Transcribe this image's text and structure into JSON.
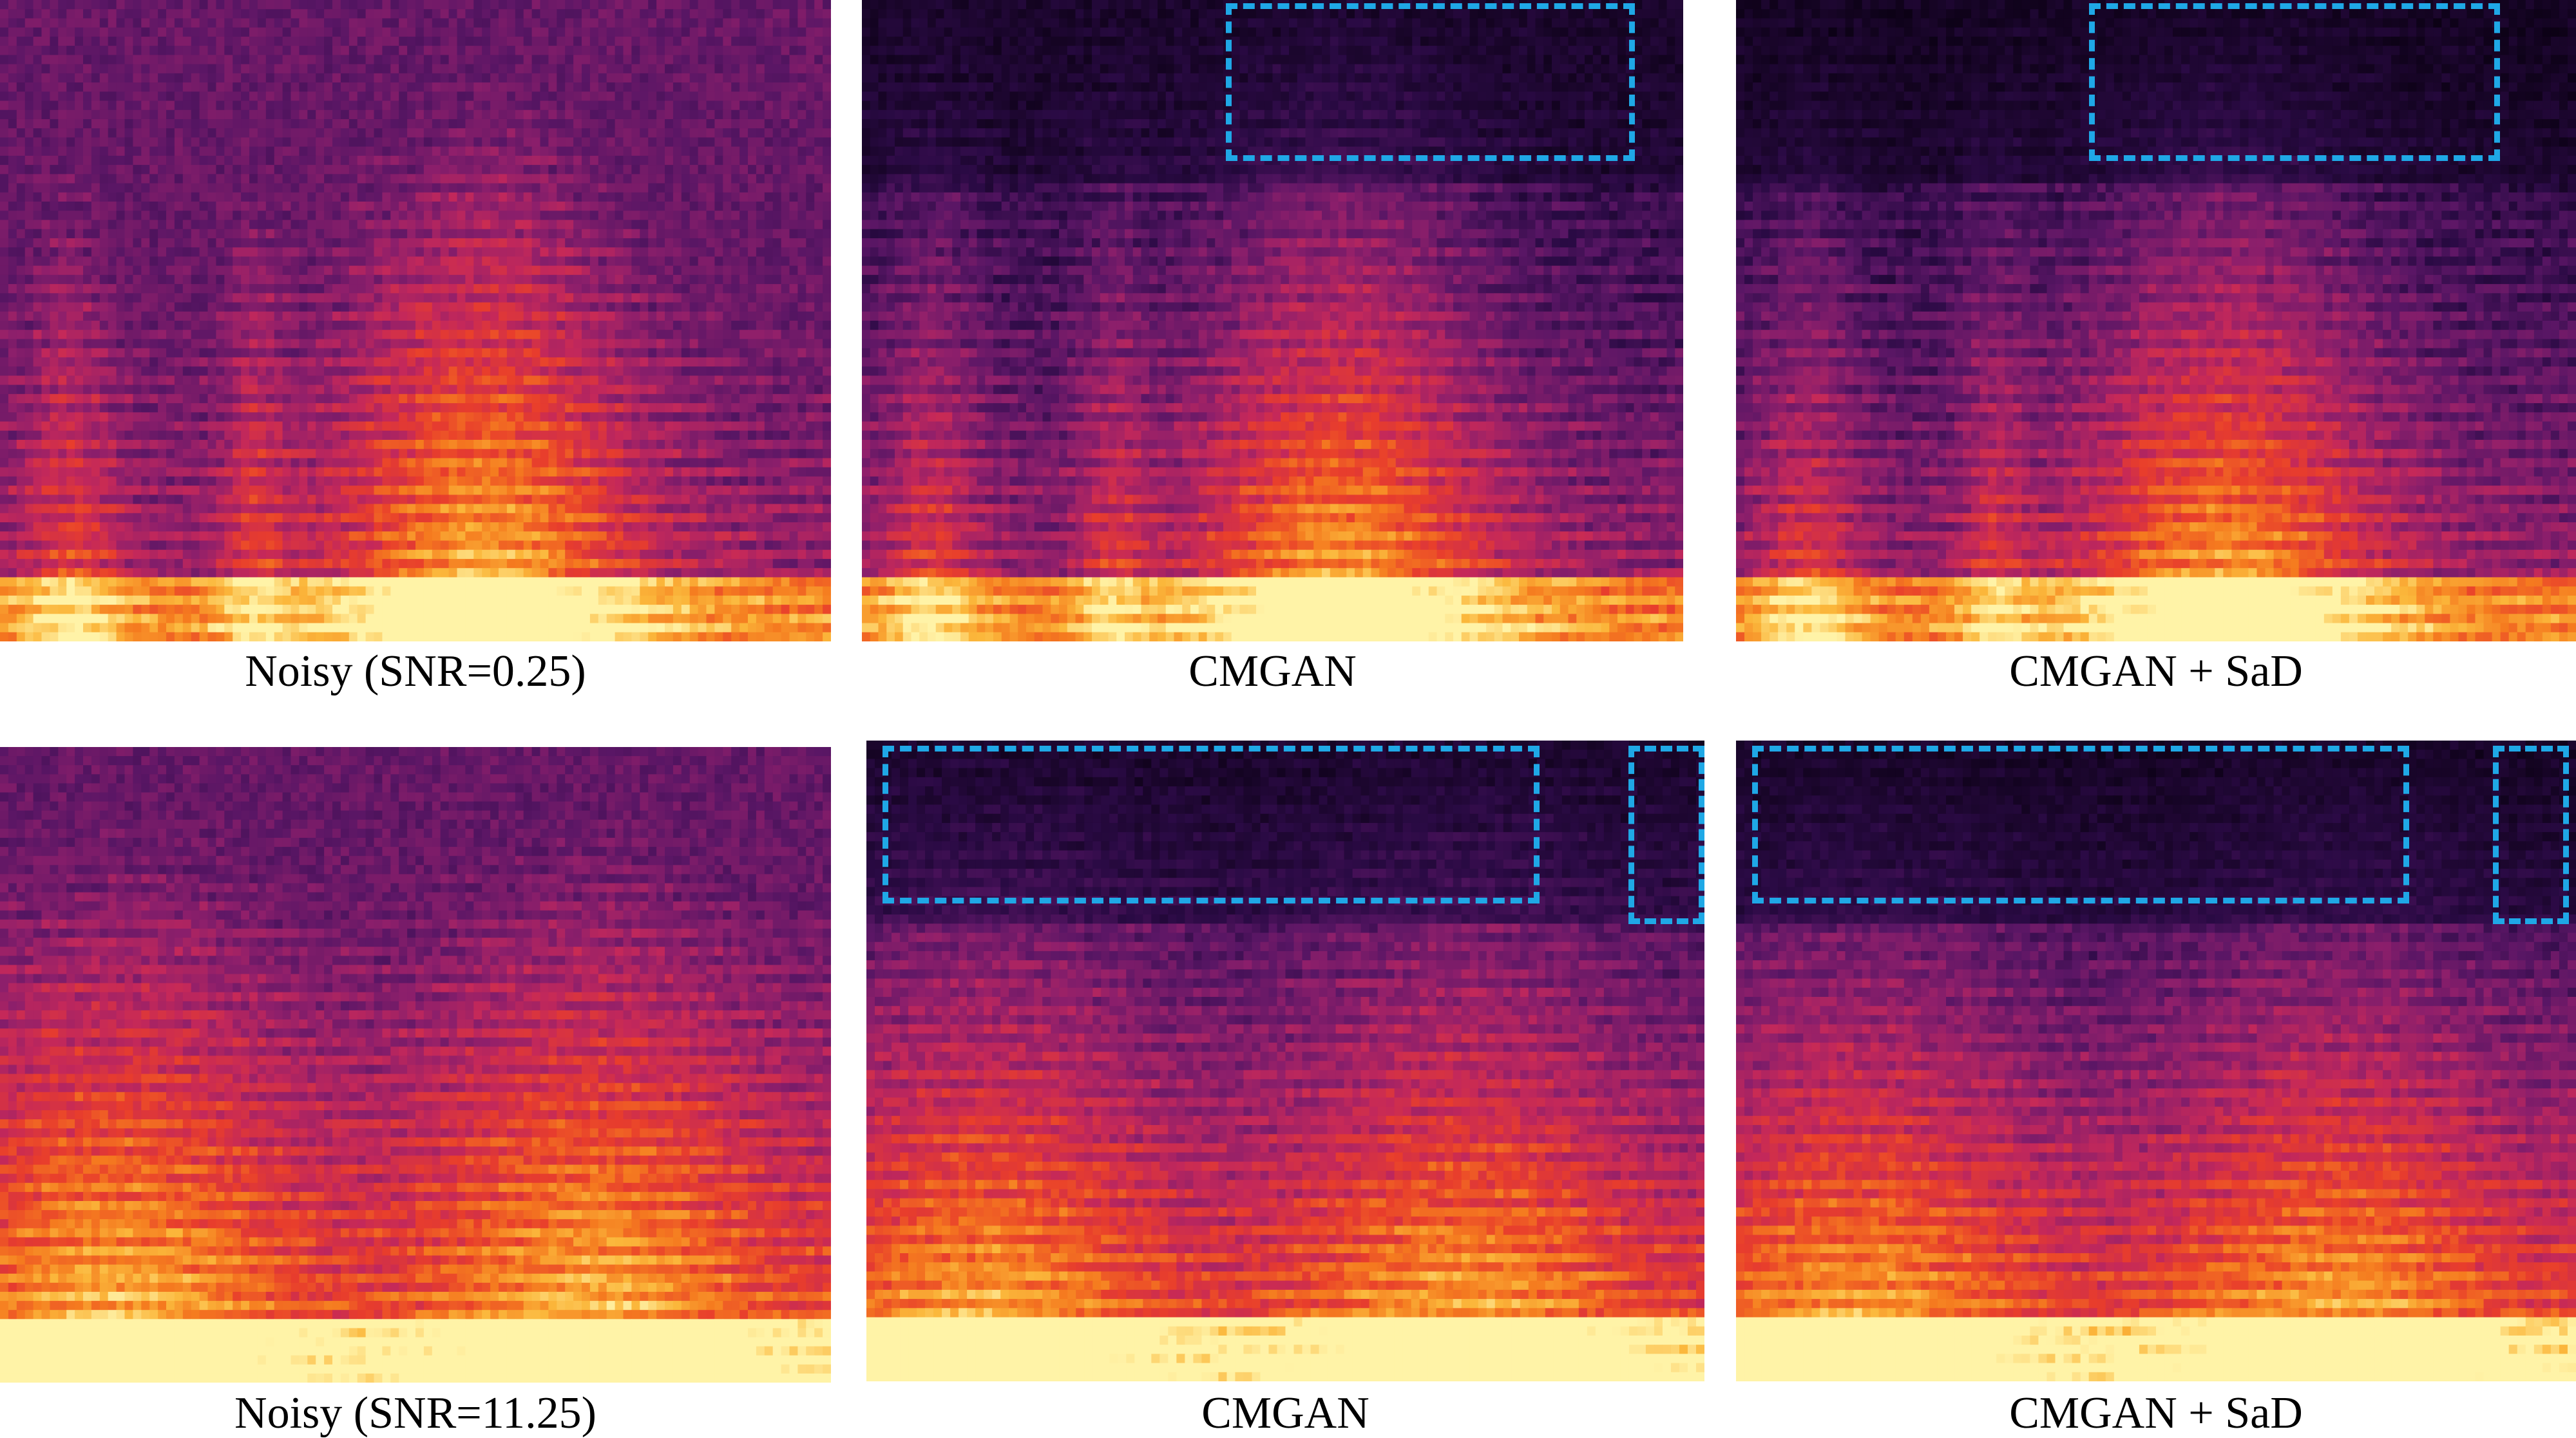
{
  "figure": {
    "rows": [
      {
        "panels": [
          {
            "caption": "Noisy (SNR=0.25)",
            "kind": "noisy",
            "suppression": 0.0
          },
          {
            "caption": "CMGAN",
            "kind": "enhanced",
            "suppression": 0.7
          },
          {
            "caption": "CMGAN + SaD",
            "kind": "enhanced",
            "suppression": 0.85
          }
        ]
      },
      {
        "panels": [
          {
            "caption": "Noisy (SNR=11.25)",
            "kind": "noisy",
            "suppression": 0.0
          },
          {
            "caption": "CMGAN",
            "kind": "enhanced",
            "suppression": 0.7
          },
          {
            "caption": "CMGAN + SaD",
            "kind": "enhanced",
            "suppression": 0.85
          }
        ]
      }
    ],
    "colors": {
      "highlight": "#1fa8e6",
      "colormap": [
        "#0b0114",
        "#2a0a44",
        "#5a1665",
        "#8e1f6b",
        "#c4285a",
        "#e83d2c",
        "#f57b1f",
        "#fbb73b",
        "#fff3a8"
      ]
    }
  }
}
